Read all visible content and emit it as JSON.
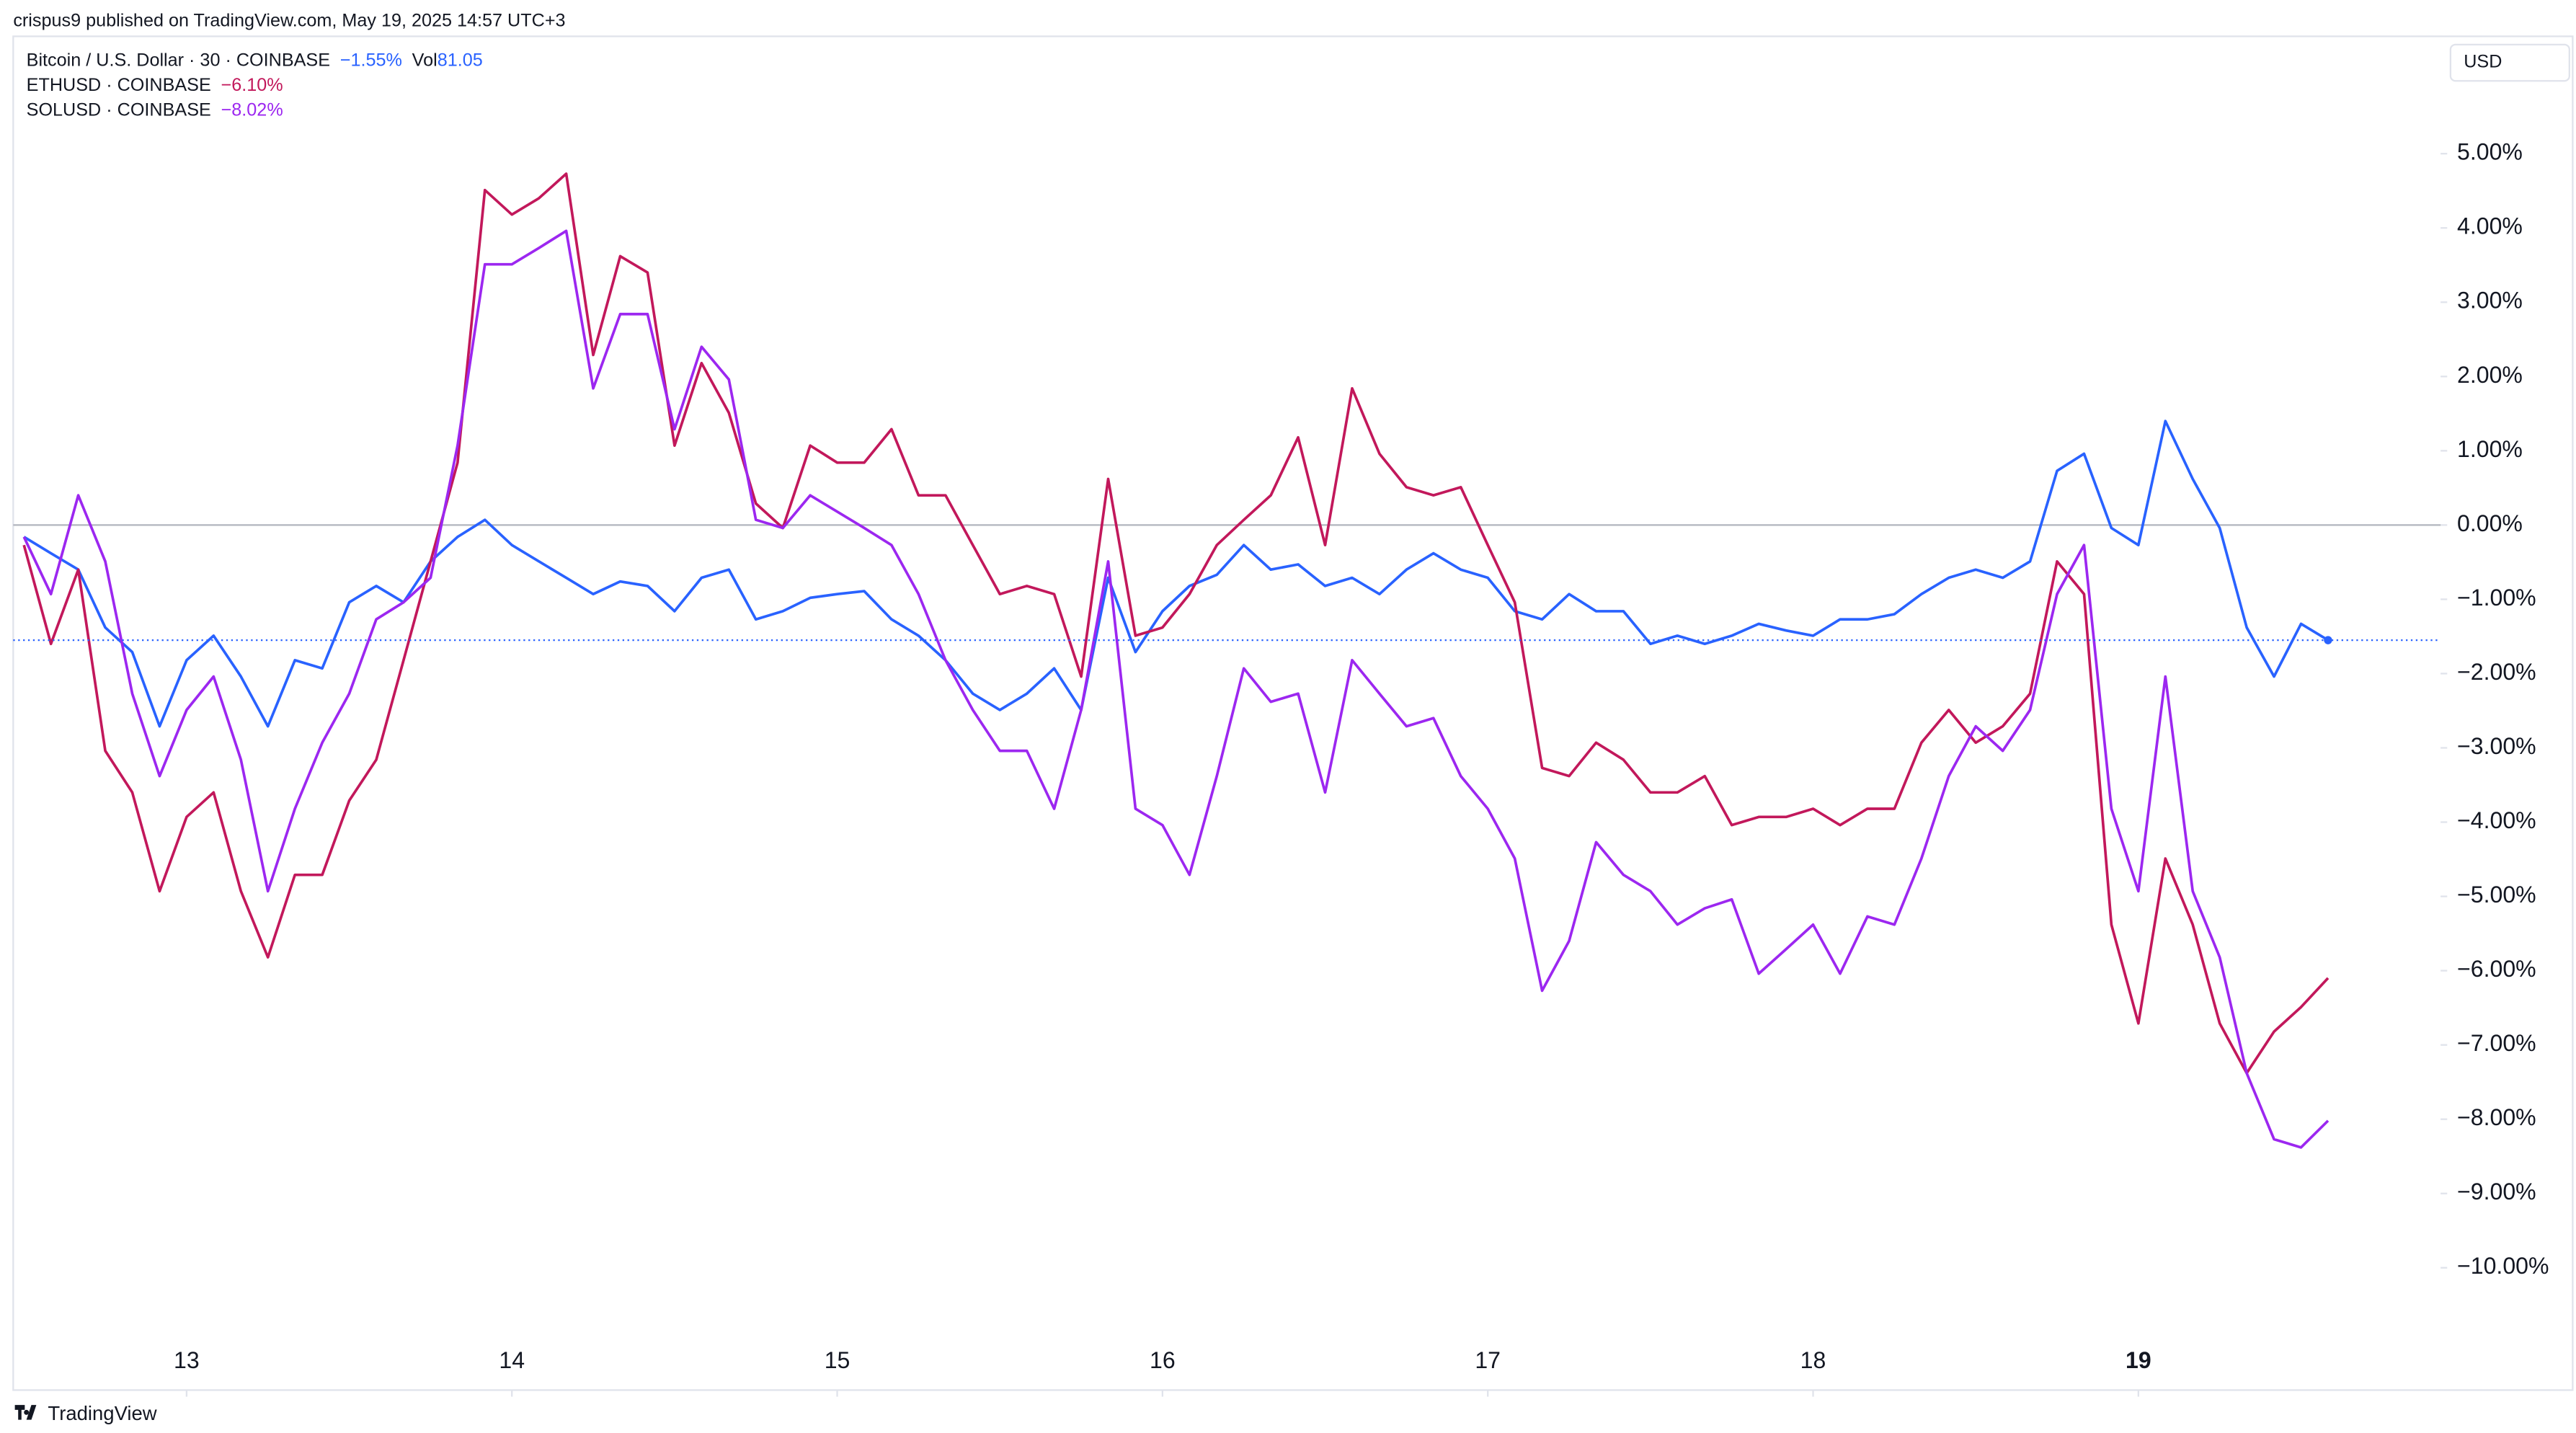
{
  "header": {
    "publisher": "crispus9 published on TradingView.com, May 19, 2025 14:57 UTC+3",
    "currency": "USD",
    "brand": "TradingView"
  },
  "chart_data": {
    "type": "line",
    "x": [
      12.5,
      12.583,
      12.667,
      12.75,
      12.833,
      12.917,
      13,
      13.083,
      13.167,
      13.25,
      13.333,
      13.417,
      13.5,
      13.583,
      13.667,
      13.75,
      13.833,
      13.917,
      14,
      14.083,
      14.167,
      14.25,
      14.333,
      14.417,
      14.5,
      14.583,
      14.667,
      14.75,
      14.833,
      14.917,
      15,
      15.083,
      15.167,
      15.25,
      15.333,
      15.417,
      15.5,
      15.583,
      15.667,
      15.75,
      15.833,
      15.917,
      16,
      16.083,
      16.167,
      16.25,
      16.333,
      16.417,
      16.5,
      16.583,
      16.667,
      16.75,
      16.833,
      16.917,
      17,
      17.083,
      17.167,
      17.25,
      17.333,
      17.417,
      17.5,
      17.583,
      17.667,
      17.75,
      17.833,
      17.917,
      18,
      18.083,
      18.167,
      18.25,
      18.333,
      18.417,
      18.5,
      18.583,
      18.667,
      18.75,
      18.833,
      18.917,
      19,
      19.083,
      19.167,
      19.25,
      19.333,
      19.417,
      19.5,
      19.583
    ],
    "xlim": [
      12.467,
      19.929
    ],
    "xticks": [
      13,
      14,
      15,
      16,
      17,
      18,
      19
    ],
    "ylim": [
      -10.98,
      6.58
    ],
    "yticks": [
      {
        "value": 5,
        "label": "5.00%"
      },
      {
        "value": 4,
        "label": "4.00%"
      },
      {
        "value": 3,
        "label": "3.00%"
      },
      {
        "value": 2,
        "label": "2.00%"
      },
      {
        "value": 1,
        "label": "1.00%"
      },
      {
        "value": 0,
        "label": "0.00%"
      },
      {
        "value": -1,
        "label": "−1.00%"
      },
      {
        "value": -2,
        "label": "−2.00%"
      },
      {
        "value": -3,
        "label": "−3.00%"
      },
      {
        "value": -4,
        "label": "−4.00%"
      },
      {
        "value": -5,
        "label": "−5.00%"
      },
      {
        "value": -6,
        "label": "−6.00%"
      },
      {
        "value": -7,
        "label": "−7.00%"
      },
      {
        "value": -8,
        "label": "−8.00%"
      },
      {
        "value": -9,
        "label": "−9.00%"
      },
      {
        "value": -10,
        "label": "−10.00%"
      }
    ],
    "series": [
      {
        "name": "Bitcoin / U.S. Dollar · 30 · COINBASE",
        "color": "#2962ff",
        "change_label": "−1.55%",
        "volume_label": "Vol",
        "volume_value": "81.05",
        "values": [
          -0.16,
          -0.38,
          -0.6,
          -1.38,
          -1.71,
          -2.71,
          -1.82,
          -1.49,
          -2.04,
          -2.71,
          -1.82,
          -1.93,
          -1.04,
          -0.82,
          -1.04,
          -0.49,
          -0.16,
          0.07,
          -0.27,
          -0.49,
          -0.71,
          -0.93,
          -0.76,
          -0.82,
          -1.16,
          -0.71,
          -0.6,
          -1.27,
          -1.16,
          -0.98,
          -0.93,
          -0.89,
          -1.27,
          -1.49,
          -1.82,
          -2.27,
          -2.49,
          -2.27,
          -1.93,
          -2.49,
          -0.71,
          -1.71,
          -1.16,
          -0.82,
          -0.67,
          -0.27,
          -0.6,
          -0.53,
          -0.82,
          -0.71,
          -0.93,
          -0.6,
          -0.38,
          -0.6,
          -0.71,
          -1.16,
          -1.27,
          -0.93,
          -1.16,
          -1.16,
          -1.6,
          -1.49,
          -1.6,
          -1.49,
          -1.33,
          -1.42,
          -1.49,
          -1.27,
          -1.27,
          -1.2,
          -0.93,
          -0.71,
          -0.6,
          -0.71,
          -0.49,
          0.73,
          0.96,
          -0.04,
          -0.27,
          1.4,
          0.62,
          -0.04,
          -1.38,
          -2.04,
          -1.33,
          -1.55
        ]
      },
      {
        "name": "ETHUSD · COINBASE",
        "color": "#c2185b",
        "change_label": "−6.10%",
        "values": [
          -0.27,
          -1.6,
          -0.6,
          -3.04,
          -3.6,
          -4.93,
          -3.93,
          -3.6,
          -4.93,
          -5.82,
          -4.71,
          -4.71,
          -3.71,
          -3.16,
          -1.82,
          -0.49,
          0.84,
          4.51,
          4.18,
          4.4,
          4.73,
          2.29,
          3.62,
          3.4,
          1.07,
          2.18,
          1.51,
          0.29,
          -0.04,
          1.07,
          0.84,
          0.84,
          1.29,
          0.4,
          0.4,
          -0.27,
          -0.93,
          -0.82,
          -0.93,
          -2.04,
          0.62,
          -1.49,
          -1.38,
          -0.93,
          -0.27,
          0.07,
          0.4,
          1.18,
          -0.27,
          1.84,
          0.96,
          0.51,
          0.4,
          0.51,
          -0.27,
          -1.04,
          -3.27,
          -3.38,
          -2.93,
          -3.16,
          -3.6,
          -3.6,
          -3.38,
          -4.04,
          -3.93,
          -3.93,
          -3.82,
          -4.04,
          -3.82,
          -3.82,
          -2.93,
          -2.49,
          -2.93,
          -2.71,
          -2.27,
          -0.49,
          -0.93,
          -5.38,
          -6.71,
          -4.49,
          -5.38,
          -6.71,
          -7.38,
          -6.82,
          -6.49,
          -6.1
        ]
      },
      {
        "name": "SOLUSD · COINBASE",
        "color": "#9c27f0",
        "change_label": "−8.02%",
        "values": [
          -0.16,
          -0.93,
          0.4,
          -0.49,
          -2.27,
          -3.38,
          -2.49,
          -2.04,
          -3.16,
          -4.93,
          -3.82,
          -2.93,
          -2.27,
          -1.27,
          -1.04,
          -0.71,
          1.07,
          3.51,
          3.51,
          3.73,
          3.96,
          1.84,
          2.84,
          2.84,
          1.29,
          2.4,
          1.96,
          0.07,
          -0.04,
          0.4,
          0.18,
          -0.04,
          -0.27,
          -0.93,
          -1.82,
          -2.49,
          -3.04,
          -3.04,
          -3.82,
          -2.49,
          -0.49,
          -3.82,
          -4.04,
          -4.71,
          -3.38,
          -1.93,
          -2.38,
          -2.27,
          -3.6,
          -1.82,
          -2.27,
          -2.71,
          -2.6,
          -3.38,
          -3.82,
          -4.49,
          -6.27,
          -5.6,
          -4.27,
          -4.71,
          -4.93,
          -5.38,
          -5.16,
          -5.04,
          -6.04,
          -5.71,
          -5.38,
          -6.04,
          -5.27,
          -5.38,
          -4.49,
          -3.38,
          -2.71,
          -3.04,
          -2.49,
          -0.93,
          -0.27,
          -3.82,
          -4.93,
          -2.04,
          -4.93,
          -5.82,
          -7.38,
          -8.27,
          -8.38,
          -8.02
        ]
      }
    ]
  }
}
